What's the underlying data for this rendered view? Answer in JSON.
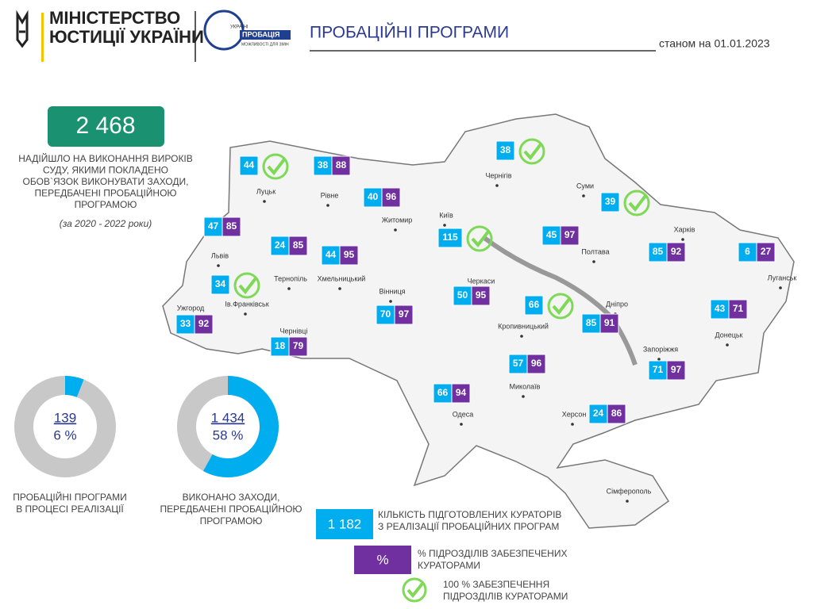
{
  "header": {
    "ministry_lines": [
      "МІНІСТЕРСТВО",
      "ЮСТИЦІЇ УКРАЇНИ"
    ],
    "logo_lines": [
      "УКРАЇНІ",
      "ПРОБАЦІЯ",
      "МОЖЛИВОСТІ ДЛЯ ЗМІН"
    ],
    "title": "ПРОБАЦІЙНІ ПРОГРАМИ",
    "date": "станом на 01.01.2023"
  },
  "summary": {
    "total": "2 468",
    "lines": [
      "НАДІЙШЛО НА ВИКОНАННЯ ВИРОКІВ",
      "СУДУ, ЯКИМИ ПОКЛАДЕНО",
      "ОБОВ`ЯЗОК ВИКОНУВАТИ ЗАХОДИ,",
      "ПЕРЕДБАЧЕНІ ПРОБАЦІЙНОЮ",
      "ПРОГРАМОЮ"
    ],
    "period": "(за 2020 - 2022 роки)"
  },
  "donuts": [
    {
      "count": "139",
      "percent": 6,
      "percent_label": "6 %",
      "lines": [
        "ПРОБАЦІЙНІ ПРОГРАМИ",
        "В ПРОЦЕСІ РЕАЛІЗАЦІЇ"
      ]
    },
    {
      "count": "1 434",
      "percent": 58,
      "percent_label": "58 %",
      "lines": [
        "ВИКОНАНО ЗАХОДИ,",
        "ПЕРЕДБАЧЕНІ ПРОБАЦІЙНОЮ",
        "ПРОГРАМОЮ"
      ]
    }
  ],
  "regions": [
    {
      "name": "Луцьк",
      "curators": 44,
      "full": true
    },
    {
      "name": "Рівне",
      "curators": 38,
      "percent": 88
    },
    {
      "name": "Житомир",
      "curators": 40,
      "percent": 96
    },
    {
      "name": "Київ",
      "curators": 115,
      "full": true
    },
    {
      "name": "Чернігів",
      "curators": 38,
      "full": true
    },
    {
      "name": "Суми",
      "curators": 39,
      "full": true
    },
    {
      "name": "Харків",
      "curators": 85,
      "percent": 92
    },
    {
      "name": "Луганськ",
      "curators": 6,
      "percent": 27
    },
    {
      "name": "Львів",
      "curators": 47,
      "percent": 85
    },
    {
      "name": "Тернопіль",
      "curators": 24,
      "percent": 85
    },
    {
      "name": "Хмельницький",
      "curators": 44,
      "percent": 95
    },
    {
      "name": "Ів.Франківськ",
      "curators": 34,
      "full": true
    },
    {
      "name": "Ужгород",
      "curators": 33,
      "percent": 92
    },
    {
      "name": "Чернівці",
      "curators": 18,
      "percent": 79
    },
    {
      "name": "Вінниця",
      "curators": 70,
      "percent": 97
    },
    {
      "name": "Черкаси",
      "curators": 50,
      "percent": 95
    },
    {
      "name": "Кропивницький",
      "curators": 66,
      "full": true
    },
    {
      "name": "Полтава",
      "curators": 45,
      "percent": 97
    },
    {
      "name": "Дніпро",
      "curators": 85,
      "percent": 91
    },
    {
      "name": "Донецьк",
      "curators": 43,
      "percent": 71
    },
    {
      "name": "Запоріжжя",
      "curators": 71,
      "percent": 97
    },
    {
      "name": "Миколаїв",
      "curators": 57,
      "percent": 96
    },
    {
      "name": "Одеса",
      "curators": 66,
      "percent": 94
    },
    {
      "name": "Херсон",
      "curators": 24,
      "percent": 86
    },
    {
      "name": "Сімферополь"
    }
  ],
  "legend": {
    "curators_total": "1 182",
    "curators_lines": [
      "КІЛЬКІСТЬ ПІДГОТОВЛЕНИХ КУРАТОРІВ",
      "З РЕАЛІЗАЦІЇ ПРОБАЦІЙНИХ ПРОГРАМ"
    ],
    "percent_symbol": "%",
    "percent_lines": [
      "% ПІДРОЗДІЛІВ ЗАБЕЗПЕЧЕНИХ",
      "КУРАТОРАМИ"
    ],
    "full_lines": [
      "100 % ЗАБЕЗПЕЧЕННЯ",
      "ПІДРОЗДІЛІВ КУРАТОРАМИ"
    ]
  }
}
